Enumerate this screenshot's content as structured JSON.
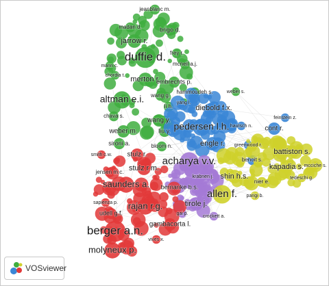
{
  "clusters": [
    {
      "color": "#3fae3f",
      "nodes": [
        {
          "label": "jeanblanc m."
        },
        {
          "label": "madan d."
        },
        {
          "label": "brigo d."
        },
        {
          "label": "jarrow r."
        },
        {
          "label": "duffie d."
        },
        {
          "label": "frey r."
        },
        {
          "label": "mcneil a.j."
        },
        {
          "label": "mann c."
        },
        {
          "label": "chordia t."
        },
        {
          "label": "merton r."
        },
        {
          "label": "embrechts p."
        },
        {
          "label": "hammoudeh s."
        },
        {
          "label": "weber s."
        },
        {
          "label": "altman e.i."
        },
        {
          "label": "wang g."
        },
        {
          "label": "yang l."
        },
        {
          "label": "li h."
        },
        {
          "label": "chava s."
        },
        {
          "label": "weber m."
        },
        {
          "label": "sironi a."
        },
        {
          "label": "wang y."
        },
        {
          "label": "liu y."
        },
        {
          "label": "bloom n."
        }
      ]
    },
    {
      "color": "#3a86d6",
      "nodes": [
        {
          "label": "diebold f.x."
        },
        {
          "label": "pedersen l.h."
        },
        {
          "label": "hautsch n."
        },
        {
          "label": "engle r."
        },
        {
          "label": "greenwood r."
        },
        {
          "label": "benoit s."
        },
        {
          "label": "feinstein z."
        },
        {
          "label": "cont r."
        }
      ]
    },
    {
      "color": "#a57ad6",
      "nodes": [
        {
          "label": "acharya v.v."
        },
        {
          "label": "krabnen j."
        },
        {
          "label": "bernanke b.s."
        },
        {
          "label": "tirole j."
        },
        {
          "label": "gai p."
        },
        {
          "label": "crockett a."
        }
      ]
    },
    {
      "color": "#cfd12c",
      "nodes": [
        {
          "label": "battiston s."
        },
        {
          "label": "kapadia s."
        },
        {
          "label": "mcciche s."
        },
        {
          "label": "tedeschi g."
        },
        {
          "label": "shin h.s."
        },
        {
          "label": "allen f."
        },
        {
          "label": "nier e."
        },
        {
          "label": "parigi b."
        }
      ]
    },
    {
      "color": "#e23838",
      "nodes": [
        {
          "label": "smith c.w."
        },
        {
          "label": "stulz r."
        },
        {
          "label": "stulz r.m."
        },
        {
          "label": "jensen m.c."
        },
        {
          "label": "saunders a."
        },
        {
          "label": "sapienza p."
        },
        {
          "label": "rajan r.g."
        },
        {
          "label": "udell g.f."
        },
        {
          "label": "gambacorta l."
        },
        {
          "label": "berger a.n."
        },
        {
          "label": "vives x."
        },
        {
          "label": "molyneux p."
        }
      ]
    }
  ],
  "logo": {
    "text": "VOSviewer"
  }
}
